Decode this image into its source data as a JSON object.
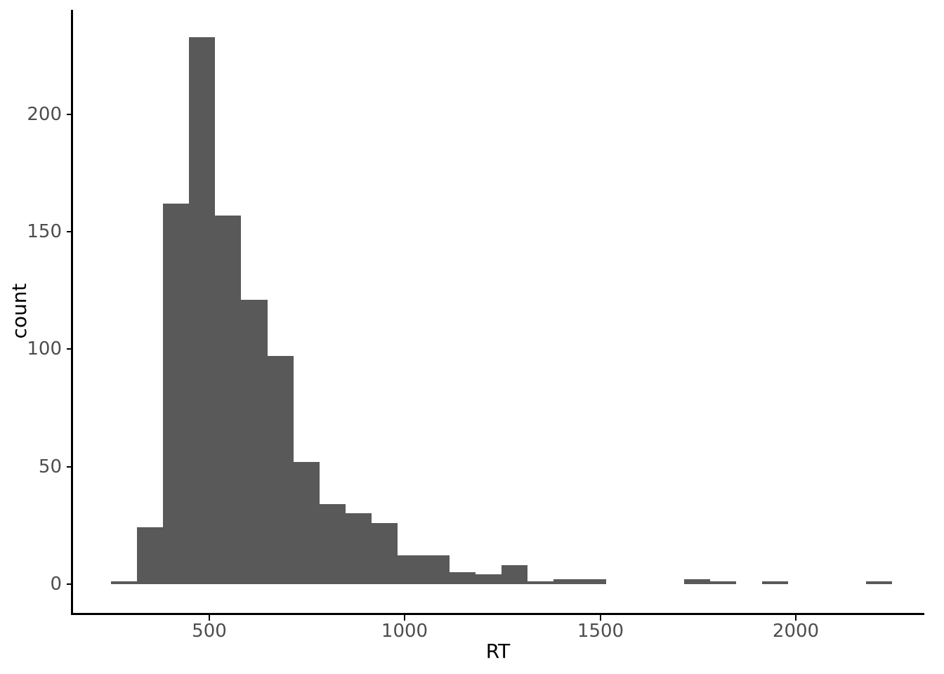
{
  "figure": {
    "background": "#ffffff"
  },
  "chart_data": {
    "type": "histogram",
    "title": "",
    "xlabel": "RT",
    "ylabel": "count",
    "grid": false,
    "legend": false,
    "bar_color": "#595959",
    "axis_color": "#000000",
    "tick_label_color": "#4d4d4d",
    "bin_start": 249,
    "bin_width": 66.6,
    "n_bins": 30,
    "counts": [
      1,
      24,
      162,
      233,
      157,
      121,
      97,
      52,
      34,
      30,
      26,
      12,
      12,
      5,
      4,
      8,
      1,
      2,
      2,
      0,
      0,
      0,
      2,
      1,
      0,
      1,
      0,
      0,
      0,
      1
    ],
    "x_ticks": [
      500,
      1000,
      1500,
      2000
    ],
    "y_ticks": [
      0,
      50,
      100,
      150,
      200
    ],
    "xlim": [
      150,
      2329
    ],
    "ylim": [
      -12.4,
      244.7
    ]
  }
}
